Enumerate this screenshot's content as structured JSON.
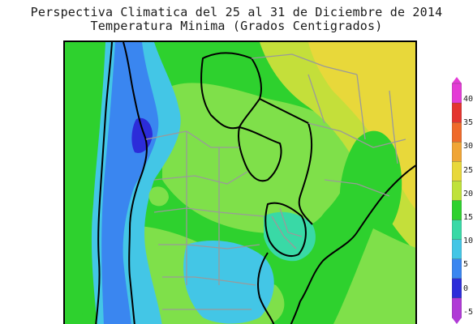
{
  "title": {
    "line1": "Perspectiva Climatica del 25 al 31 de Diciembre de 2014",
    "line2": "Temperatura Minima (Grados Centigrados)"
  },
  "colors": {
    "deep_blue": "#2c2cd9",
    "blue": "#3a86f0",
    "cyan": "#43c6e6",
    "aqua_green": "#39d9a6",
    "green": "#2ed12e",
    "light_green": "#7fe04a",
    "yellow_green": "#c4df3a",
    "yellow": "#e8d83a",
    "ocean": "#2ecf2e",
    "borders": "#9a9a9a",
    "coast": "#000000"
  },
  "legend": {
    "ticks": [
      "40",
      "35",
      "30",
      "25",
      "20",
      "15",
      "10",
      "5",
      "0",
      "-5"
    ],
    "colors": [
      "#e43bd6",
      "#e4342f",
      "#ef6a2a",
      "#f0a535",
      "#e8d83a",
      "#bfe23a",
      "#2ed12e",
      "#39d9a6",
      "#43c6e6",
      "#3a86f0",
      "#2c2cd9",
      "#b03ad6"
    ]
  }
}
